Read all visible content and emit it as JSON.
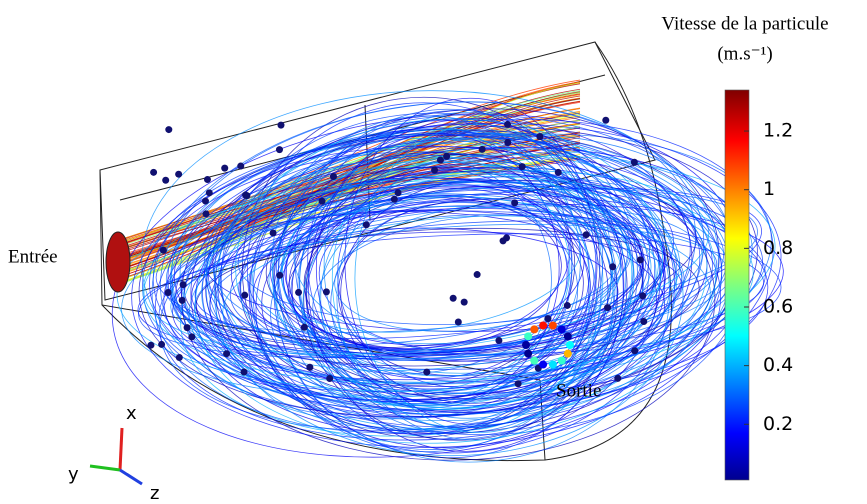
{
  "chart_data": {
    "type": "streamlines",
    "title": "Vitesse de la particule",
    "unit": "(m.s⁻¹)",
    "colormap": "jet",
    "clim": [
      0.01,
      1.34
    ],
    "cticks": [
      0.2,
      0.4,
      0.6,
      0.8,
      1,
      1.2
    ],
    "annotations": [
      "Entrée",
      "Sortie"
    ],
    "axes_labels": [
      "x",
      "y",
      "z"
    ]
  }
}
